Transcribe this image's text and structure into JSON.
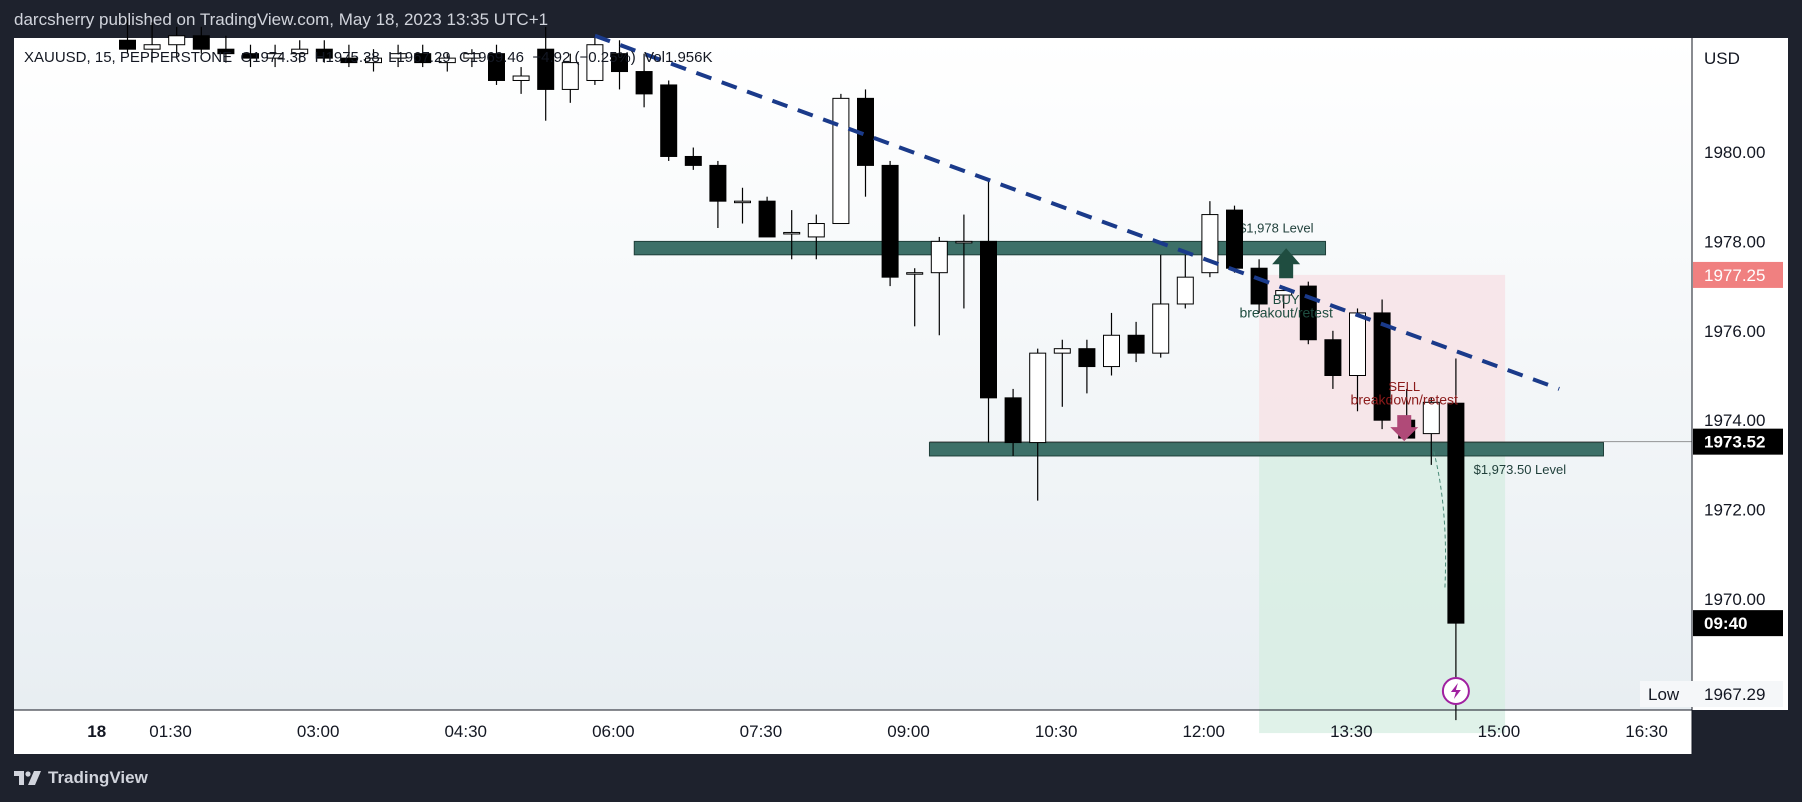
{
  "header": {
    "publish_line": "darcsherry published on TradingView.com, May 18, 2023 13:35 UTC+1"
  },
  "symbol_info": {
    "line": "XAUUSD, 15, PEPPERSTONE  O1974.38  H1975.38  L1967.29  C1969.46  −4.92 (−0.25%)  Vol1.956K"
  },
  "footer": {
    "brand": "TradingView"
  },
  "chart_data": {
    "type": "candlestick",
    "symbol": "XAUUSD",
    "interval": "15",
    "exchange": "PEPPERSTONE",
    "currency": "USD",
    "ylim": [
      1967.0,
      1982.0
    ],
    "y_ticks": [
      "1980.00",
      "1978.00",
      "1976.00",
      "1974.00",
      "1972.00",
      "1970.00"
    ],
    "x_ticks": [
      {
        "label": "18",
        "i": -1.25
      },
      {
        "label": "01:30",
        "i": 1.75
      },
      {
        "label": "03:00",
        "i": 7.75
      },
      {
        "label": "04:30",
        "i": 13.75
      },
      {
        "label": "06:00",
        "i": 19.75
      },
      {
        "label": "07:30",
        "i": 25.75
      },
      {
        "label": "09:00",
        "i": 31.75
      },
      {
        "label": "10:30",
        "i": 37.75
      },
      {
        "label": "12:00",
        "i": 43.75
      },
      {
        "label": "13:30",
        "i": 49.75
      },
      {
        "label": "15:00",
        "i": 55.75
      },
      {
        "label": "16:30",
        "i": 61.75
      }
    ],
    "candles": [
      {
        "t": "00:15",
        "o": 1982.5,
        "h": 1983.0,
        "l": 1982.2,
        "c": 1982.3
      },
      {
        "t": "00:30",
        "o": 1982.3,
        "h": 1982.9,
        "l": 1982.0,
        "c": 1982.4
      },
      {
        "t": "00:45",
        "o": 1982.4,
        "h": 1982.8,
        "l": 1982.1,
        "c": 1982.6
      },
      {
        "t": "01:00",
        "o": 1982.6,
        "h": 1982.8,
        "l": 1982.2,
        "c": 1982.3
      },
      {
        "t": "01:15",
        "o": 1982.3,
        "h": 1982.6,
        "l": 1982.0,
        "c": 1982.2
      },
      {
        "t": "01:30",
        "o": 1982.2,
        "h": 1982.4,
        "l": 1981.9,
        "c": 1982.1
      },
      {
        "t": "01:45",
        "o": 1982.1,
        "h": 1982.4,
        "l": 1981.9,
        "c": 1982.2
      },
      {
        "t": "02:00",
        "o": 1982.2,
        "h": 1982.5,
        "l": 1982.0,
        "c": 1982.3
      },
      {
        "t": "02:15",
        "o": 1982.3,
        "h": 1982.5,
        "l": 1982.0,
        "c": 1982.1
      },
      {
        "t": "02:30",
        "o": 1982.1,
        "h": 1982.4,
        "l": 1981.9,
        "c": 1982.0
      },
      {
        "t": "02:45",
        "o": 1982.0,
        "h": 1982.3,
        "l": 1981.8,
        "c": 1982.1
      },
      {
        "t": "03:00",
        "o": 1982.1,
        "h": 1982.4,
        "l": 1981.9,
        "c": 1982.2
      },
      {
        "t": "03:15",
        "o": 1982.2,
        "h": 1982.4,
        "l": 1981.9,
        "c": 1982.0
      },
      {
        "t": "03:30",
        "o": 1982.0,
        "h": 1982.2,
        "l": 1981.8,
        "c": 1982.1
      },
      {
        "t": "03:45",
        "o": 1982.1,
        "h": 1982.3,
        "l": 1981.9,
        "c": 1982.2
      },
      {
        "t": "04:00",
        "o": 1982.2,
        "h": 1982.4,
        "l": 1981.5,
        "c": 1981.6
      },
      {
        "t": "04:15",
        "o": 1981.6,
        "h": 1981.9,
        "l": 1981.3,
        "c": 1981.7
      },
      {
        "t": "04:30",
        "o": 1982.3,
        "h": 1982.8,
        "l": 1980.7,
        "c": 1981.4
      },
      {
        "t": "04:45",
        "o": 1981.4,
        "h": 1982.2,
        "l": 1981.1,
        "c": 1982.0
      },
      {
        "t": "05:00",
        "o": 1981.6,
        "h": 1982.6,
        "l": 1981.5,
        "c": 1982.4
      },
      {
        "t": "05:15",
        "o": 1982.2,
        "h": 1982.5,
        "l": 1981.4,
        "c": 1981.8
      },
      {
        "t": "05:30",
        "o": 1981.8,
        "h": 1982.2,
        "l": 1981.0,
        "c": 1981.3
      },
      {
        "t": "05:45",
        "o": 1981.5,
        "h": 1981.6,
        "l": 1979.8,
        "c": 1979.9
      },
      {
        "t": "06:00",
        "o": 1979.9,
        "h": 1980.1,
        "l": 1979.6,
        "c": 1979.7
      },
      {
        "t": "06:15",
        "o": 1979.7,
        "h": 1979.8,
        "l": 1978.3,
        "c": 1978.9
      },
      {
        "t": "06:30",
        "o": 1978.9,
        "h": 1979.2,
        "l": 1978.4,
        "c": 1978.9
      },
      {
        "t": "06:45",
        "o": 1978.9,
        "h": 1979.0,
        "l": 1978.1,
        "c": 1978.1
      },
      {
        "t": "07:00",
        "o": 1978.2,
        "h": 1978.7,
        "l": 1977.6,
        "c": 1978.2
      },
      {
        "t": "07:15",
        "o": 1978.1,
        "h": 1978.6,
        "l": 1977.6,
        "c": 1978.4
      },
      {
        "t": "07:30",
        "o": 1978.4,
        "h": 1981.3,
        "l": 1978.4,
        "c": 1981.2
      },
      {
        "t": "07:45",
        "o": 1981.2,
        "h": 1981.4,
        "l": 1979.0,
        "c": 1979.7
      },
      {
        "t": "08:00",
        "o": 1979.7,
        "h": 1979.8,
        "l": 1977.0,
        "c": 1977.2
      },
      {
        "t": "08:15",
        "o": 1977.3,
        "h": 1977.4,
        "l": 1976.1,
        "c": 1977.3
      },
      {
        "t": "08:30",
        "o": 1977.3,
        "h": 1978.1,
        "l": 1975.9,
        "c": 1978.0
      },
      {
        "t": "08:45",
        "o": 1978.0,
        "h": 1978.6,
        "l": 1976.5,
        "c": 1978.0
      },
      {
        "t": "09:00",
        "o": 1978.0,
        "h": 1979.4,
        "l": 1973.5,
        "c": 1974.5
      },
      {
        "t": "09:15",
        "o": 1974.5,
        "h": 1974.7,
        "l": 1973.2,
        "c": 1973.5
      },
      {
        "t": "09:30",
        "o": 1973.5,
        "h": 1975.6,
        "l": 1972.2,
        "c": 1975.5
      },
      {
        "t": "09:45",
        "o": 1975.5,
        "h": 1975.8,
        "l": 1974.3,
        "c": 1975.6
      },
      {
        "t": "10:00",
        "o": 1975.6,
        "h": 1975.8,
        "l": 1974.6,
        "c": 1975.2
      },
      {
        "t": "10:15",
        "o": 1975.2,
        "h": 1976.4,
        "l": 1975.0,
        "c": 1975.9
      },
      {
        "t": "10:30",
        "o": 1975.9,
        "h": 1976.2,
        "l": 1975.3,
        "c": 1975.5
      },
      {
        "t": "10:45",
        "o": 1975.5,
        "h": 1977.7,
        "l": 1975.4,
        "c": 1976.6
      },
      {
        "t": "11:00",
        "o": 1976.6,
        "h": 1977.7,
        "l": 1976.5,
        "c": 1977.2
      },
      {
        "t": "11:15",
        "o": 1977.3,
        "h": 1978.9,
        "l": 1977.2,
        "c": 1978.6
      },
      {
        "t": "11:30",
        "o": 1978.7,
        "h": 1978.8,
        "l": 1977.3,
        "c": 1977.4
      },
      {
        "t": "11:45",
        "o": 1977.4,
        "h": 1977.6,
        "l": 1976.4,
        "c": 1976.6
      },
      {
        "t": "12:00",
        "o": 1976.8,
        "h": 1977.0,
        "l": 1976.5,
        "c": 1976.9
      },
      {
        "t": "12:15",
        "o": 1977.0,
        "h": 1977.1,
        "l": 1975.7,
        "c": 1975.8
      },
      {
        "t": "12:30",
        "o": 1975.8,
        "h": 1976.0,
        "l": 1974.7,
        "c": 1975.0
      },
      {
        "t": "12:45",
        "o": 1975.0,
        "h": 1976.5,
        "l": 1974.2,
        "c": 1976.4
      },
      {
        "t": "13:00",
        "o": 1976.4,
        "h": 1976.7,
        "l": 1973.8,
        "c": 1974.0
      },
      {
        "t": "13:15",
        "o": 1974.0,
        "h": 1974.7,
        "l": 1973.6,
        "c": 1973.6
      },
      {
        "t": "13:30",
        "o": 1973.7,
        "h": 1974.5,
        "l": 1973.0,
        "c": 1974.4
      },
      {
        "t": "13:45",
        "o": 1974.38,
        "h": 1975.38,
        "l": 1967.29,
        "c": 1969.46
      }
    ],
    "current_price": "1973.52",
    "countdown": "09:40",
    "high_label": "1977.25",
    "low_label": "Low",
    "low_value": "1967.29",
    "trendline": {
      "from": {
        "i": 19.0,
        "p": 1982.6
      },
      "to": {
        "i": 58.2,
        "p": 1974.7
      }
    },
    "zones": [
      {
        "name": "resistance",
        "i0": 20.6,
        "i1": 48.7,
        "p_top": 1978.0,
        "p_bot": 1977.7,
        "label": "$1,978 Level",
        "label_i": 46.7,
        "label_p": 1978.2
      },
      {
        "name": "support",
        "i0": 32.6,
        "i1": 60.0,
        "p_top": 1973.5,
        "p_bot": 1973.2,
        "label": "$1,973.50 Level",
        "label_i": 56.6,
        "label_p": 1972.8
      }
    ],
    "position": {
      "i0": 46.0,
      "i1": 56.0,
      "entry": 1973.52,
      "stop": 1977.25,
      "target": 1967.0
    },
    "annotations": {
      "buy_line1": "BUY",
      "buy_line2": "breakout/retest",
      "sell_line1": "SELL",
      "sell_line2": "breakdown/retest"
    },
    "colors": {
      "bull_body": "#ffffff",
      "bear_body": "#000000",
      "trendline": "#1a3a8a",
      "zone_fill": "#3d7068",
      "buy": "#1f4d40",
      "sell": "#8b1a1a",
      "sell_arrow": "#b04a78",
      "stop_fill": "#f7e3e6",
      "target_fill": "#d6eee2",
      "price_tag": "#000000",
      "high_tag": "#f08080",
      "alert": "#a020a0"
    }
  }
}
